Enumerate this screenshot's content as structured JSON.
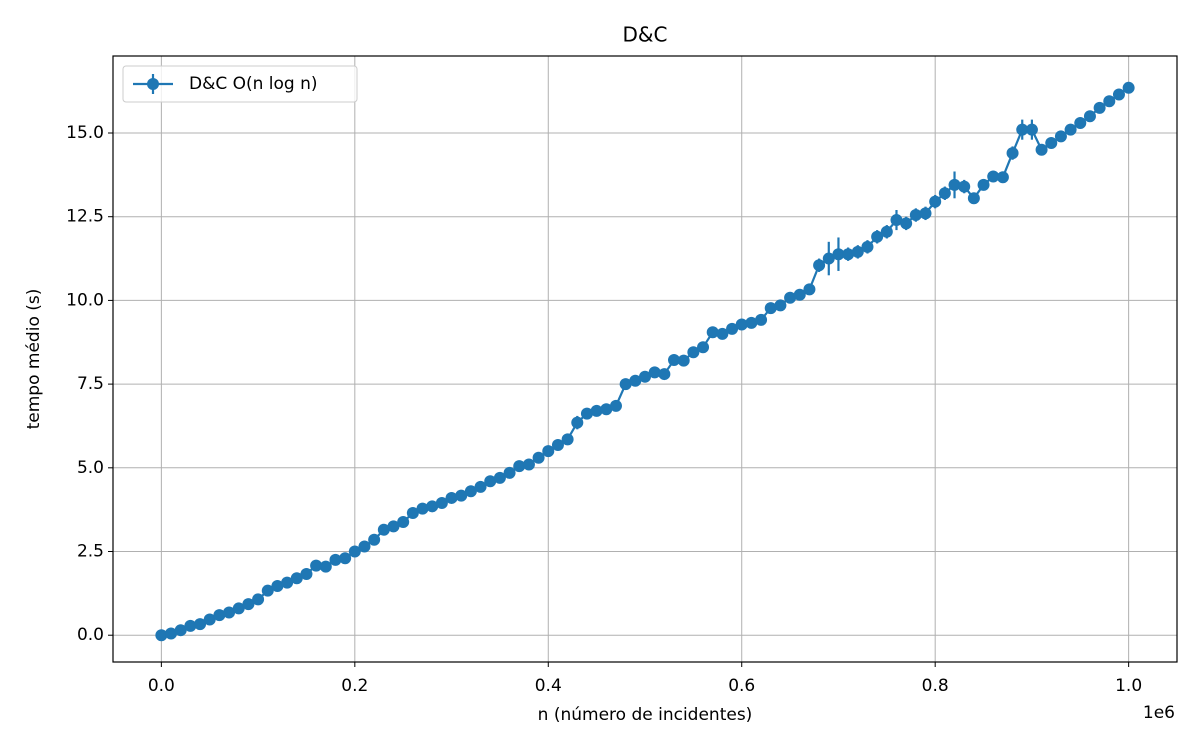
{
  "chart_data": {
    "type": "errorbar",
    "title": "D&C",
    "xlabel": "n (número de incidentes)",
    "ylabel": "tempo médio (s)",
    "x_offset_label": "1e6",
    "x": [
      0,
      10000,
      20000,
      30000,
      40000,
      50000,
      60000,
      70000,
      80000,
      90000,
      100000,
      110000,
      120000,
      130000,
      140000,
      150000,
      160000,
      170000,
      180000,
      190000,
      200000,
      210000,
      220000,
      230000,
      240000,
      250000,
      260000,
      270000,
      280000,
      290000,
      300000,
      310000,
      320000,
      330000,
      340000,
      350000,
      360000,
      370000,
      380000,
      390000,
      400000,
      410000,
      420000,
      430000,
      440000,
      450000,
      460000,
      470000,
      480000,
      490000,
      500000,
      510000,
      520000,
      530000,
      540000,
      550000,
      560000,
      570000,
      580000,
      590000,
      600000,
      610000,
      620000,
      630000,
      640000,
      650000,
      660000,
      670000,
      680000,
      690000,
      700000,
      710000,
      720000,
      730000,
      740000,
      750000,
      760000,
      770000,
      780000,
      790000,
      800000,
      810000,
      820000,
      830000,
      840000,
      850000,
      860000,
      870000,
      880000,
      890000,
      900000,
      910000,
      920000,
      930000,
      940000,
      950000,
      960000,
      970000,
      980000,
      990000,
      1000000
    ],
    "series": [
      {
        "name": "D&C O(n log n)",
        "color": "#1f77b4",
        "values": [
          0.0,
          0.05,
          0.15,
          0.28,
          0.33,
          0.47,
          0.6,
          0.68,
          0.8,
          0.93,
          1.07,
          1.33,
          1.47,
          1.57,
          1.7,
          1.83,
          2.08,
          2.05,
          2.25,
          2.3,
          2.5,
          2.65,
          2.85,
          3.15,
          3.25,
          3.38,
          3.65,
          3.78,
          3.85,
          3.95,
          4.1,
          4.17,
          4.3,
          4.43,
          4.6,
          4.7,
          4.85,
          5.05,
          5.1,
          5.3,
          5.5,
          5.68,
          5.85,
          6.35,
          6.62,
          6.7,
          6.75,
          6.85,
          7.5,
          7.6,
          7.72,
          7.85,
          7.8,
          8.22,
          8.2,
          8.45,
          8.6,
          9.05,
          9.0,
          9.15,
          9.28,
          9.33,
          9.42,
          9.77,
          9.85,
          10.08,
          10.17,
          10.33,
          11.05,
          11.25,
          11.38,
          11.38,
          11.45,
          11.6,
          11.9,
          12.05,
          12.4,
          12.3,
          12.55,
          12.6,
          12.95,
          13.2,
          13.45,
          13.4,
          13.05,
          13.45,
          13.7,
          13.68,
          14.4,
          15.1,
          15.1,
          14.5,
          14.7,
          14.9,
          15.1,
          15.3,
          15.5,
          15.75,
          15.95,
          16.15,
          16.35
        ],
        "errors": [
          0.05,
          0.05,
          0.05,
          0.05,
          0.05,
          0.05,
          0.05,
          0.05,
          0.05,
          0.05,
          0.05,
          0.05,
          0.05,
          0.05,
          0.05,
          0.05,
          0.05,
          0.05,
          0.05,
          0.05,
          0.05,
          0.05,
          0.05,
          0.05,
          0.05,
          0.05,
          0.05,
          0.05,
          0.05,
          0.05,
          0.05,
          0.05,
          0.05,
          0.05,
          0.05,
          0.05,
          0.05,
          0.05,
          0.05,
          0.05,
          0.05,
          0.05,
          0.05,
          0.2,
          0.1,
          0.1,
          0.1,
          0.1,
          0.1,
          0.1,
          0.1,
          0.1,
          0.1,
          0.1,
          0.1,
          0.15,
          0.1,
          0.1,
          0.1,
          0.1,
          0.1,
          0.1,
          0.1,
          0.1,
          0.1,
          0.1,
          0.1,
          0.1,
          0.2,
          0.5,
          0.5,
          0.2,
          0.2,
          0.2,
          0.2,
          0.2,
          0.3,
          0.2,
          0.2,
          0.2,
          0.2,
          0.2,
          0.4,
          0.2,
          0.1,
          0.1,
          0.1,
          0.1,
          0.2,
          0.3,
          0.3,
          0.1,
          0.1,
          0.1,
          0.1,
          0.1,
          0.1,
          0.1,
          0.1,
          0.1,
          0.1
        ]
      }
    ],
    "xlim": [
      -50000,
      1050000
    ],
    "ylim": [
      -0.8,
      17.3
    ],
    "xticks": [
      {
        "value": 0,
        "label": "0.0"
      },
      {
        "value": 200000,
        "label": "0.2"
      },
      {
        "value": 400000,
        "label": "0.4"
      },
      {
        "value": 600000,
        "label": "0.6"
      },
      {
        "value": 800000,
        "label": "0.8"
      },
      {
        "value": 1000000,
        "label": "1.0"
      }
    ],
    "yticks": [
      {
        "value": 0,
        "label": "0.0"
      },
      {
        "value": 2.5,
        "label": "2.5"
      },
      {
        "value": 5,
        "label": "5.0"
      },
      {
        "value": 7.5,
        "label": "7.5"
      },
      {
        "value": 10,
        "label": "10.0"
      },
      {
        "value": 12.5,
        "label": "12.5"
      },
      {
        "value": 15,
        "label": "15.0"
      }
    ],
    "grid": true,
    "legend": "upper left"
  }
}
